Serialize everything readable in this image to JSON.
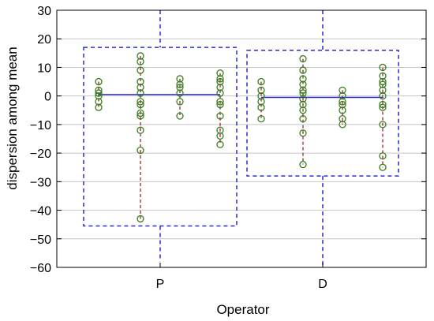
{
  "chart_data": {
    "type": "scatter",
    "title": "",
    "xlabel": "Operator",
    "ylabel": "dispersion among mean",
    "ylim": [
      -60,
      30
    ],
    "yticks": [
      30,
      20,
      10,
      0,
      -10,
      -20,
      -30,
      -40,
      -50,
      -60
    ],
    "ytick_labels": [
      "30",
      "20",
      "10",
      "0",
      "−10",
      "−20",
      "−30",
      "−40",
      "−50",
      "−60"
    ],
    "categories": [
      "P",
      "D"
    ],
    "grid": true,
    "colors": {
      "box": "#2a2ad0",
      "mean_line": "#2a2ad0",
      "points": "#3a7d1f",
      "whisker": "#8b1a1a",
      "grid": "#c8c8c8"
    },
    "groups": [
      {
        "operator": "P",
        "group_mean": 0.5,
        "box_range": [
          -45.5,
          17
        ],
        "whisker_range": [
          -58,
          30
        ],
        "subgroups": [
          {
            "values": [
              5,
              2,
              1,
              0,
              -2,
              -4
            ]
          },
          {
            "values": [
              14,
              12,
              9,
              5,
              3,
              1,
              -2,
              -3,
              -6,
              -7,
              -12,
              -19,
              -43
            ]
          },
          {
            "values": [
              6,
              4,
              3,
              1,
              -2,
              -7
            ]
          },
          {
            "values": [
              8,
              6,
              5,
              3,
              1,
              -2,
              -3,
              -7,
              -12,
              -14,
              -17
            ]
          }
        ]
      },
      {
        "operator": "D",
        "group_mean": -0.5,
        "box_range": [
          -28,
          16
        ],
        "whisker_range": [
          -60,
          30
        ],
        "subgroups": [
          {
            "values": [
              5,
              2,
              0,
              -2,
              -4,
              -8
            ]
          },
          {
            "values": [
              13,
              9,
              6,
              4,
              2,
              1,
              -1,
              -3,
              -5,
              -8,
              -13,
              -24
            ]
          },
          {
            "values": [
              2,
              0,
              -2,
              -3,
              -5,
              -8,
              -10
            ]
          },
          {
            "values": [
              10,
              7,
              5,
              4,
              2,
              0,
              -3,
              -4,
              -10,
              -21,
              -25
            ]
          }
        ]
      }
    ]
  }
}
